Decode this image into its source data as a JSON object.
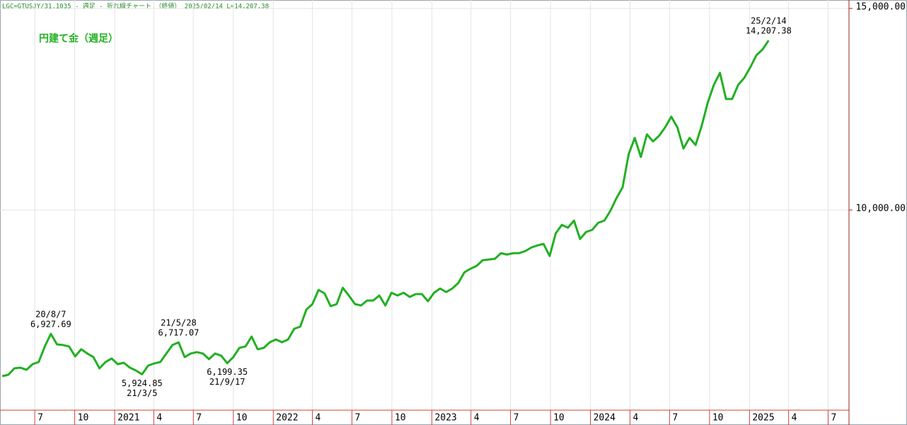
{
  "chart_data": {
    "type": "line",
    "header": "LGC=GTUSJY/31.1035 - 週足 - 折れ線チャート （終値） 2025/02/14 L=14,207.38",
    "x": [
      "2020-04-17",
      "2020-05-01",
      "2020-05-15",
      "2020-05-29",
      "2020-06-12",
      "2020-06-26",
      "2020-07-10",
      "2020-07-24",
      "2020-08-07",
      "2020-08-21",
      "2020-09-04",
      "2020-09-18",
      "2020-10-02",
      "2020-10-16",
      "2020-10-30",
      "2020-11-13",
      "2020-11-27",
      "2020-12-11",
      "2020-12-25",
      "2021-01-08",
      "2021-01-22",
      "2021-02-05",
      "2021-02-19",
      "2021-03-05",
      "2021-03-19",
      "2021-04-02",
      "2021-04-16",
      "2021-04-30",
      "2021-05-14",
      "2021-05-28",
      "2021-06-11",
      "2021-06-25",
      "2021-07-09",
      "2021-07-23",
      "2021-08-06",
      "2021-08-20",
      "2021-09-03",
      "2021-09-17",
      "2021-10-01",
      "2021-10-15",
      "2021-10-29",
      "2021-11-12",
      "2021-11-26",
      "2021-12-10",
      "2021-12-24",
      "2022-01-07",
      "2022-01-21",
      "2022-02-04",
      "2022-02-18",
      "2022-03-04",
      "2022-03-18",
      "2022-04-01",
      "2022-04-15",
      "2022-04-29",
      "2022-05-13",
      "2022-05-27",
      "2022-06-10",
      "2022-06-24",
      "2022-07-08",
      "2022-07-22",
      "2022-08-05",
      "2022-08-19",
      "2022-09-02",
      "2022-09-16",
      "2022-09-30",
      "2022-10-14",
      "2022-10-28",
      "2022-11-11",
      "2022-11-25",
      "2022-12-09",
      "2022-12-23",
      "2023-01-06",
      "2023-01-20",
      "2023-02-03",
      "2023-02-17",
      "2023-03-03",
      "2023-03-17",
      "2023-03-31",
      "2023-04-14",
      "2023-04-28",
      "2023-05-12",
      "2023-05-26",
      "2023-06-09",
      "2023-06-23",
      "2023-07-07",
      "2023-07-21",
      "2023-08-04",
      "2023-08-18",
      "2023-09-01",
      "2023-09-15",
      "2023-09-29",
      "2023-10-13",
      "2023-10-27",
      "2023-11-10",
      "2023-11-24",
      "2023-12-08",
      "2023-12-22",
      "2024-01-05",
      "2024-01-19",
      "2024-02-02",
      "2024-02-16",
      "2024-03-01",
      "2024-03-15",
      "2024-03-29",
      "2024-04-12",
      "2024-04-26",
      "2024-05-10",
      "2024-05-24",
      "2024-06-07",
      "2024-06-21",
      "2024-07-05",
      "2024-07-19",
      "2024-08-02",
      "2024-08-16",
      "2024-08-30",
      "2024-09-13",
      "2024-09-27",
      "2024-10-11",
      "2024-10-25",
      "2024-11-08",
      "2024-11-22",
      "2024-12-06",
      "2024-12-20",
      "2025-01-03",
      "2025-01-17",
      "2025-01-31",
      "2025-02-14"
    ],
    "series": [
      {
        "name": "円建て金（週足）",
        "color": "#22b022",
        "values": [
          5878,
          5913,
          6071,
          6089,
          6036,
          6176,
          6229,
          6615,
          6927.69,
          6667,
          6650,
          6615,
          6369,
          6545,
          6440,
          6352,
          6071,
          6229,
          6317,
          6176,
          6211,
          6089,
          6018,
          5924.85,
          6141,
          6194,
          6229,
          6440,
          6650,
          6717.07,
          6352,
          6440,
          6475,
          6440,
          6299,
          6440,
          6387,
          6199.35,
          6352,
          6580,
          6615,
          6860,
          6545,
          6580,
          6720,
          6790,
          6720,
          6790,
          7053,
          7106,
          7527,
          7667,
          8018,
          7930,
          7615,
          7667,
          8071,
          7878,
          7667,
          7632,
          7755,
          7755,
          7878,
          7632,
          7948,
          7878,
          7948,
          7843,
          7913,
          7913,
          7737,
          7948,
          8053,
          7965,
          8053,
          8193,
          8456,
          8544,
          8614,
          8755,
          8772,
          8790,
          8930,
          8895,
          8930,
          8930,
          8983,
          9070,
          9123,
          9158,
          8860,
          9421,
          9632,
          9561,
          9737,
          9281,
          9456,
          9509,
          9684,
          9737,
          9982,
          10298,
          10561,
          11386,
          11789,
          11316,
          11877,
          11701,
          11842,
          12052,
          12315,
          12052,
          11526,
          11789,
          11614,
          12087,
          12666,
          13105,
          13403,
          12754,
          12754,
          13105,
          13280,
          13543,
          13841,
          13982,
          14207.38
        ]
      }
    ],
    "annotations": [
      {
        "x": "2020-08-07",
        "date_label": "20/8/7",
        "value_label": "6,927.69"
      },
      {
        "x": "2021-03-05",
        "date_label": "21/3/5",
        "value_label": "5,924.85"
      },
      {
        "x": "2021-05-28",
        "date_label": "21/5/28",
        "value_label": "6,717.07"
      },
      {
        "x": "2021-09-17",
        "date_label": "21/9/17",
        "value_label": "6,199.35"
      },
      {
        "x": "2025-02-14",
        "date_label": "25/2/14",
        "value_label": "14,207.38"
      }
    ],
    "xlim": [
      "2020-04-12",
      "2025-08-18"
    ],
    "xticks": [
      {
        "value": "2020-07-01",
        "label": "7"
      },
      {
        "value": "2020-10-01",
        "label": "10"
      },
      {
        "value": "2021-01-01",
        "label": "2021"
      },
      {
        "value": "2021-04-01",
        "label": "4"
      },
      {
        "value": "2021-07-01",
        "label": "7"
      },
      {
        "value": "2021-10-01",
        "label": "10"
      },
      {
        "value": "2022-01-01",
        "label": "2022"
      },
      {
        "value": "2022-04-01",
        "label": "4"
      },
      {
        "value": "2022-07-01",
        "label": "7"
      },
      {
        "value": "2022-10-01",
        "label": "10"
      },
      {
        "value": "2023-01-01",
        "label": "2023"
      },
      {
        "value": "2023-04-01",
        "label": "4"
      },
      {
        "value": "2023-07-01",
        "label": "7"
      },
      {
        "value": "2023-10-01",
        "label": "10"
      },
      {
        "value": "2024-01-01",
        "label": "2024"
      },
      {
        "value": "2024-04-01",
        "label": "4"
      },
      {
        "value": "2024-07-01",
        "label": "7"
      },
      {
        "value": "2024-10-01",
        "label": "10"
      },
      {
        "value": "2025-01-01",
        "label": "2025"
      },
      {
        "value": "2025-04-01",
        "label": "4"
      },
      {
        "value": "2025-07-01",
        "label": "7"
      }
    ],
    "ylim": [
      5035,
      15210
    ],
    "yticks": [
      {
        "value": 10000,
        "label": "10,000.00"
      },
      {
        "value": 15000,
        "label": "15,000.00"
      }
    ],
    "grid": true
  }
}
